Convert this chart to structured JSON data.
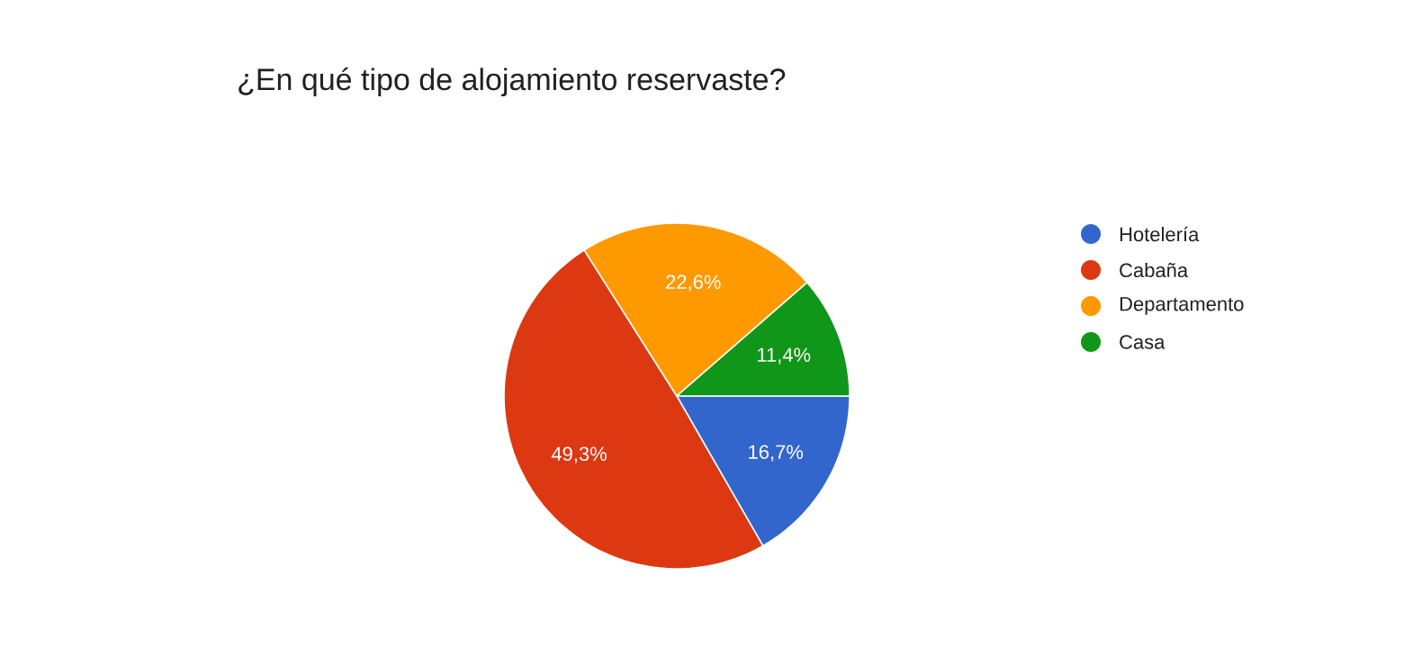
{
  "chart_data": {
    "type": "pie",
    "title": "¿En qué tipo de alojamiento reservaste?",
    "categories": [
      "Hotelería",
      "Cabaña",
      "Departamento",
      "Casa"
    ],
    "values": [
      16.7,
      49.3,
      22.6,
      11.4
    ],
    "value_labels": [
      "16,7%",
      "49,3%",
      "22,6%",
      "11,4%"
    ],
    "colors": [
      "#3366cc",
      "#dc3912",
      "#ff9900",
      "#109618"
    ],
    "legend": "right"
  }
}
